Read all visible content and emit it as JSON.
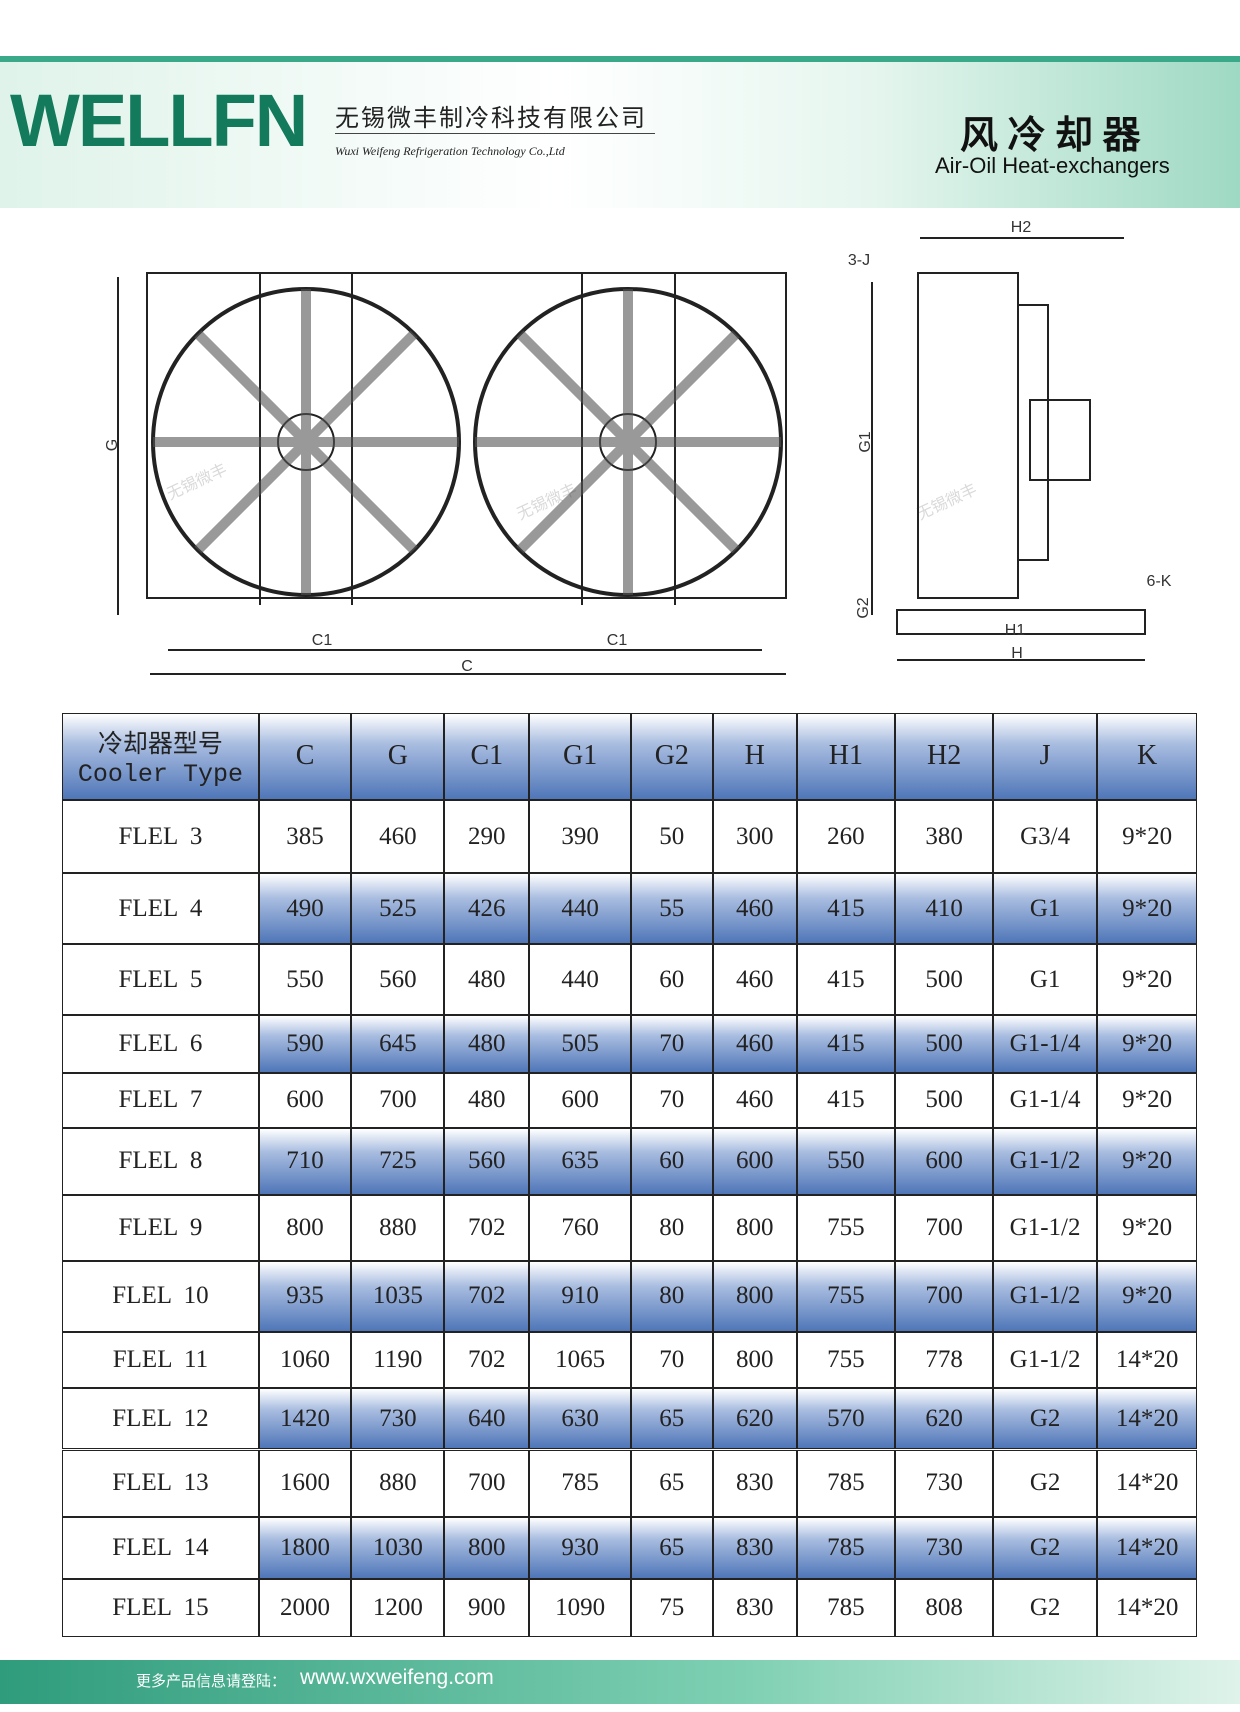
{
  "header": {
    "brand": "WELLFN",
    "company_cn": "无锡微丰制冷科技有限公司",
    "company_en": "Wuxi Weifeng Refrigeration Technology Co.,Ltd",
    "product_cn": "风 冷 却 器",
    "product_en": "Air-Oil Heat-exchangers"
  },
  "drawing": {
    "labels": [
      "G",
      "C1",
      "C1",
      "C",
      "H2",
      "3-J",
      "G1",
      "G2",
      "H1",
      "H",
      "6-K"
    ],
    "watermark": "无锡微丰"
  },
  "table": {
    "header_cn": "冷却器型号",
    "header_en": "Cooler Type",
    "columns": [
      "C",
      "G",
      "C1",
      "G1",
      "G2",
      "H",
      "H1",
      "H2",
      "J",
      "K"
    ],
    "rows": [
      [
        "FLEL  3",
        385,
        460,
        290,
        390,
        50,
        300,
        260,
        380,
        "G3/4",
        "9*20"
      ],
      [
        "FLEL  4",
        490,
        525,
        426,
        440,
        55,
        460,
        415,
        410,
        "G1",
        "9*20"
      ],
      [
        "FLEL  5",
        550,
        560,
        480,
        440,
        60,
        460,
        415,
        500,
        "G1",
        "9*20"
      ],
      [
        "FLEL  6",
        590,
        645,
        480,
        505,
        70,
        460,
        415,
        500,
        "G1-1/4",
        "9*20"
      ],
      [
        "FLEL  7",
        600,
        700,
        480,
        600,
        70,
        460,
        415,
        500,
        "G1-1/4",
        "9*20"
      ],
      [
        "FLEL  8",
        710,
        725,
        560,
        635,
        60,
        600,
        550,
        600,
        "G1-1/2",
        "9*20"
      ],
      [
        "FLEL  9",
        800,
        880,
        702,
        760,
        80,
        800,
        755,
        700,
        "G1-1/2",
        "9*20"
      ],
      [
        "FLEL  10",
        935,
        1035,
        702,
        910,
        80,
        800,
        755,
        700,
        "G1-1/2",
        "9*20"
      ],
      [
        "FLEL  11",
        1060,
        1190,
        702,
        1065,
        70,
        800,
        755,
        778,
        "G1-1/2",
        "14*20"
      ],
      [
        "FLEL  12",
        1420,
        730,
        640,
        630,
        65,
        620,
        570,
        620,
        "G2",
        "14*20"
      ],
      [
        "FLEL  13",
        1600,
        880,
        700,
        785,
        65,
        830,
        785,
        730,
        "G2",
        "14*20"
      ],
      [
        "FLEL  14",
        1800,
        1030,
        800,
        930,
        65,
        830,
        785,
        730,
        "G2",
        "14*20"
      ],
      [
        "FLEL  15",
        2000,
        1200,
        900,
        1090,
        75,
        830,
        785,
        808,
        "G2",
        "14*20"
      ]
    ]
  },
  "footer": {
    "prompt": "更多产品信息请登陆：",
    "url": "www.wxweifeng.com"
  }
}
